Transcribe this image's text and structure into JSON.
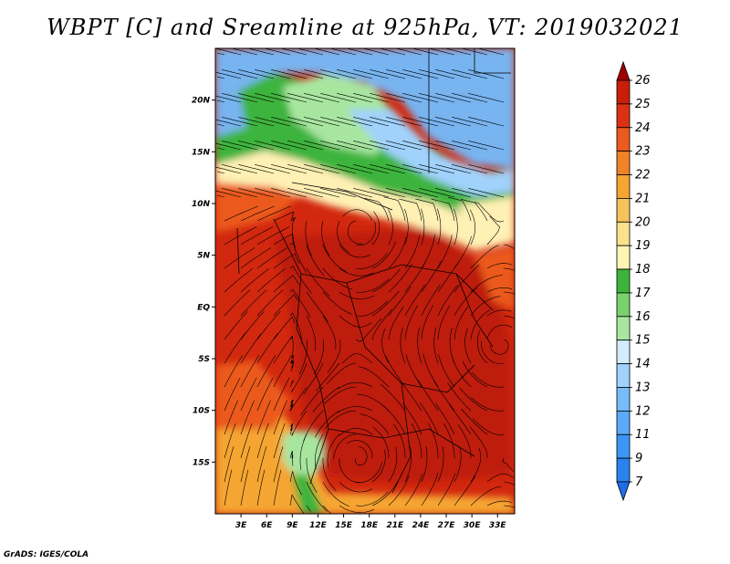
{
  "title": "WBPT [C] and Sreamline at 925hPa, VT: 2019032021",
  "footer": "GrADS: IGES/COLA",
  "map": {
    "lon_range": [
      0,
      35
    ],
    "lat_range": [
      -20,
      25
    ],
    "lat_ticks": [
      {
        "value": 20,
        "label": "20N"
      },
      {
        "value": 15,
        "label": "15N"
      },
      {
        "value": 10,
        "label": "10N"
      },
      {
        "value": 5,
        "label": "5N"
      },
      {
        "value": 0,
        "label": "EQ"
      },
      {
        "value": -5,
        "label": "5S"
      },
      {
        "value": -10,
        "label": "10S"
      },
      {
        "value": -15,
        "label": "15S"
      }
    ],
    "lon_ticks": [
      {
        "value": 3,
        "label": "3E"
      },
      {
        "value": 6,
        "label": "6E"
      },
      {
        "value": 9,
        "label": "9E"
      },
      {
        "value": 12,
        "label": "12E"
      },
      {
        "value": 15,
        "label": "15E"
      },
      {
        "value": 18,
        "label": "18E"
      },
      {
        "value": 21,
        "label": "21E"
      },
      {
        "value": 24,
        "label": "24E"
      },
      {
        "value": 27,
        "label": "27E"
      },
      {
        "value": 30,
        "label": "30E"
      },
      {
        "value": 33,
        "label": "33E"
      }
    ]
  },
  "colorbar": {
    "levels": [
      "7",
      "9",
      "11",
      "12",
      "13",
      "14",
      "15",
      "16",
      "17",
      "18",
      "19",
      "20",
      "21",
      "22",
      "23",
      "24",
      "25",
      "26"
    ],
    "colors": [
      "#1e6ee6",
      "#2a82f0",
      "#3c96f5",
      "#5aaaf8",
      "#78bcfa",
      "#a0d2fc",
      "#d2ecfe",
      "#a8e6a0",
      "#78d26e",
      "#3cb43c",
      "#fff5b4",
      "#fae18c",
      "#f5c35a",
      "#f5a532",
      "#f08228",
      "#eb5a1e",
      "#dc3214",
      "#c81e0a",
      "#a00000"
    ]
  },
  "colors": {
    "blue": "#78b4f0",
    "light_blue": "#a0d2fc",
    "light_green": "#a8e6a0",
    "green": "#3cb43c",
    "pale_yellow": "#fff0b4",
    "orange": "#f5a532",
    "dark_orange": "#eb5a1e",
    "red": "#d2280f",
    "dark_red": "#be1e0a"
  }
}
